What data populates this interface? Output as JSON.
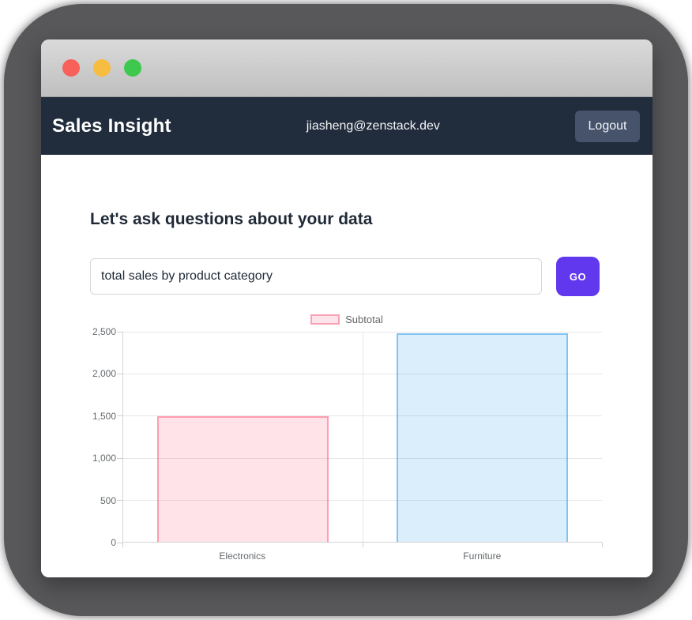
{
  "header": {
    "title": "Sales Insight",
    "user_email": "jiasheng@zenstack.dev",
    "logout_label": "Logout"
  },
  "main": {
    "heading": "Let's ask questions about your data",
    "query_value": "total sales by product category",
    "go_label": "GO"
  },
  "chart_data": {
    "type": "bar",
    "title": "",
    "categories": [
      "Electronics",
      "Furniture"
    ],
    "series": [
      {
        "name": "Subtotal",
        "values": [
          1490,
          2480
        ]
      }
    ],
    "xlabel": "",
    "ylabel": "",
    "ylim": [
      0,
      2500
    ],
    "yticks": [
      {
        "label": "0",
        "value": 0
      },
      {
        "label": "500",
        "value": 500
      },
      {
        "label": "1,000",
        "value": 1000
      },
      {
        "label": "1,500",
        "value": 1500
      },
      {
        "label": "2,000",
        "value": 2000
      },
      {
        "label": "2,500",
        "value": 2500
      }
    ],
    "legend_position": "top",
    "grid": true,
    "bar_colors": [
      {
        "fill": "rgba(255,99,132,0.18)",
        "border": "rgba(255,99,132,0.55)"
      },
      {
        "fill": "rgba(54,162,235,0.18)",
        "border": "rgba(54,162,235,0.55)"
      }
    ],
    "legend_swatch": {
      "fill": "#fde3ea",
      "border": "#f8a3b6"
    }
  },
  "colors": {
    "navbar_bg": "#212c3d",
    "logout_bg": "#46536b",
    "go_bg": "#6138ee",
    "heading_text": "#1f2937",
    "traffic_red": "#f8605a",
    "traffic_yellow": "#f6bd40",
    "traffic_green": "#3ec94e"
  }
}
